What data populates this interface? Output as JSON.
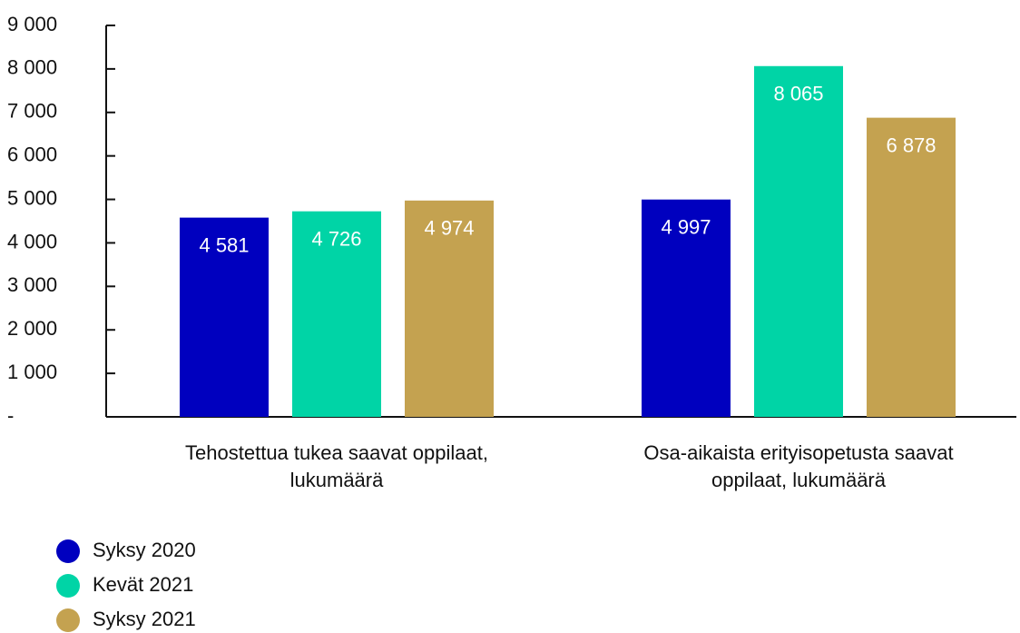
{
  "chart_data": {
    "type": "bar",
    "categories": [
      "Tehostettua tukea saavat oppilaat, lukumäärä",
      "Osa-aikaista erityisopetusta saavat oppilaat, lukumäärä"
    ],
    "series": [
      {
        "name": "Syksy 2020",
        "color": "#0000bf",
        "values": [
          4581,
          4997
        ],
        "value_labels": [
          "4 581",
          "4 997"
        ]
      },
      {
        "name": "Kevät 2021",
        "color": "#00d4a6",
        "values": [
          4726,
          8065
        ],
        "value_labels": [
          "4 726",
          "8 065"
        ]
      },
      {
        "name": "Syksy 2021",
        "color": "#c4a250",
        "values": [
          4974,
          6878
        ],
        "value_labels": [
          "4 974",
          "6 878"
        ]
      }
    ],
    "ylim": [
      0,
      9000
    ],
    "yticks": [
      {
        "value": 0,
        "label": "-"
      },
      {
        "value": 1000,
        "label": "1 000"
      },
      {
        "value": 2000,
        "label": "2 000"
      },
      {
        "value": 3000,
        "label": "3 000"
      },
      {
        "value": 4000,
        "label": "4 000"
      },
      {
        "value": 5000,
        "label": "5 000"
      },
      {
        "value": 6000,
        "label": "6 000"
      },
      {
        "value": 7000,
        "label": "7 000"
      },
      {
        "value": 8000,
        "label": "8 000"
      },
      {
        "value": 9000,
        "label": "9 000"
      }
    ],
    "grid": false,
    "legend": "bottom-left"
  }
}
